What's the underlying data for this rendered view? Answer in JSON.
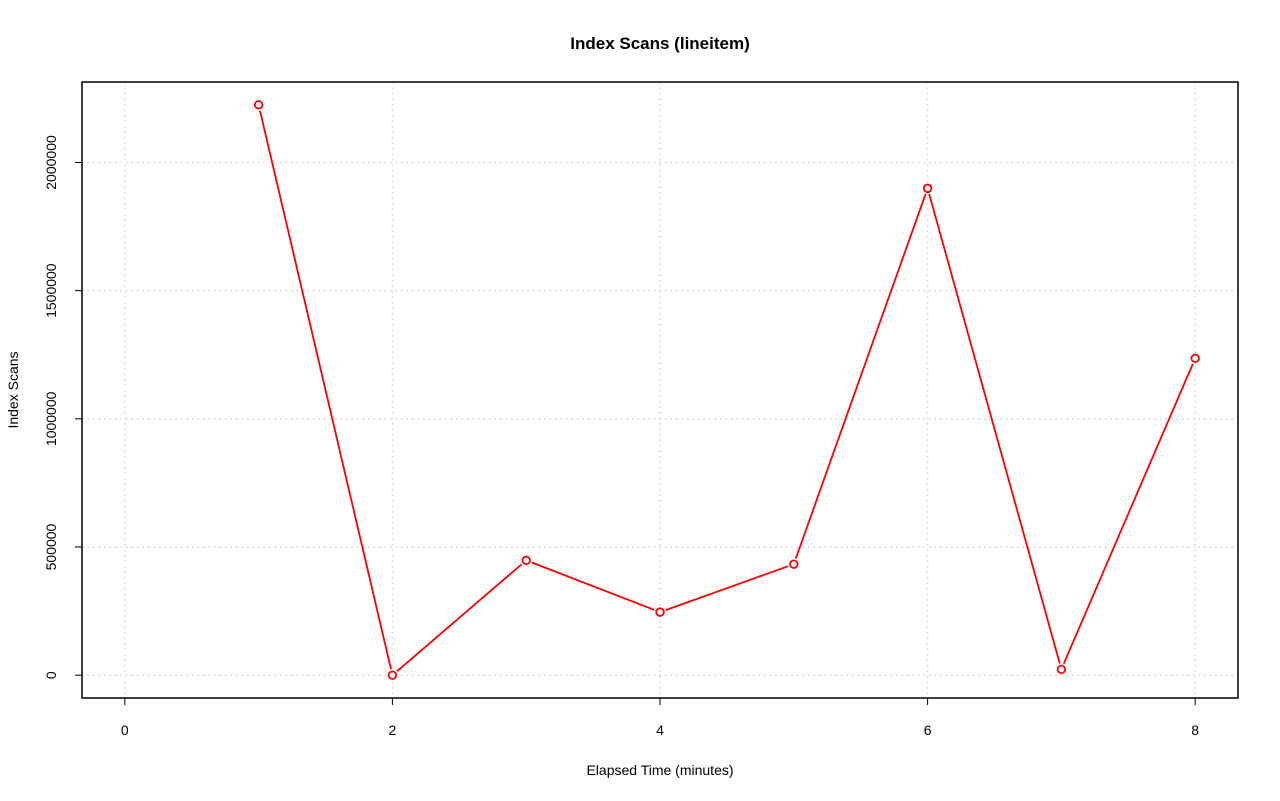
{
  "chart_data": {
    "type": "line",
    "title": "Index Scans (lineitem)",
    "xlabel": "Elapsed Time (minutes)",
    "ylabel": "Index Scans",
    "x": [
      1,
      2,
      3,
      4,
      5,
      6,
      7,
      8
    ],
    "series": [
      {
        "values": [
          2225000,
          0,
          448000,
          246000,
          433000,
          1899000,
          23000,
          1236000
        ],
        "color": "#ff0000"
      }
    ],
    "xlim": [
      -0.32,
      8.32
    ],
    "ylim": [
      -89000,
      2314000
    ],
    "xticks": [
      0,
      2,
      4,
      6,
      8
    ],
    "yticks": [
      0,
      500000,
      1000000,
      1500000,
      2000000
    ],
    "xtick_labels": [
      "0",
      "2",
      "4",
      "6",
      "8"
    ],
    "ytick_labels": [
      "0",
      "500000",
      "1000000",
      "1500000",
      "2000000"
    ],
    "grid": true,
    "grid_color": "#d3d3d3",
    "marker": "open-circle"
  }
}
